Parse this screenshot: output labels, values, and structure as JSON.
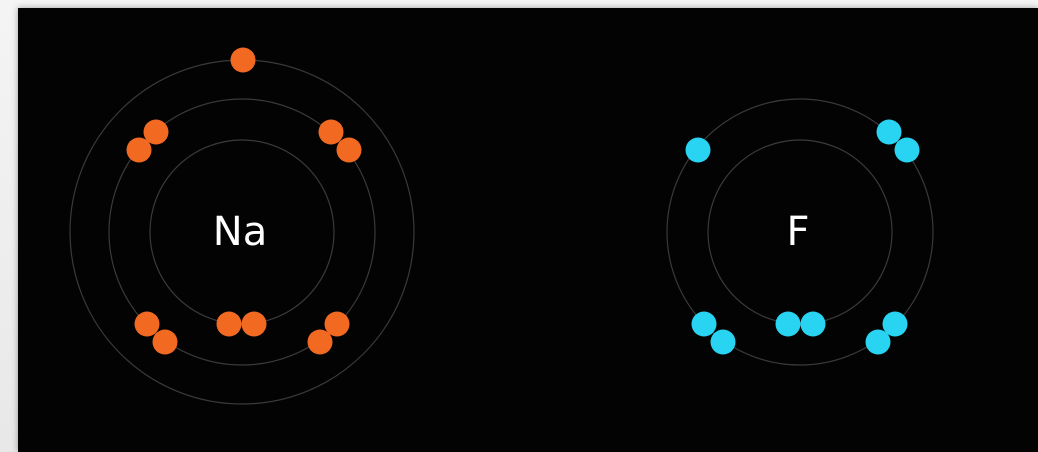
{
  "atoms": [
    {
      "id": "sodium",
      "symbol": "Na",
      "electron_color": "#f26a22",
      "shells": [
        2,
        8,
        1
      ]
    },
    {
      "id": "fluorine",
      "symbol": "F",
      "electron_color": "#29d3f2",
      "shells": [
        2,
        7
      ]
    }
  ]
}
